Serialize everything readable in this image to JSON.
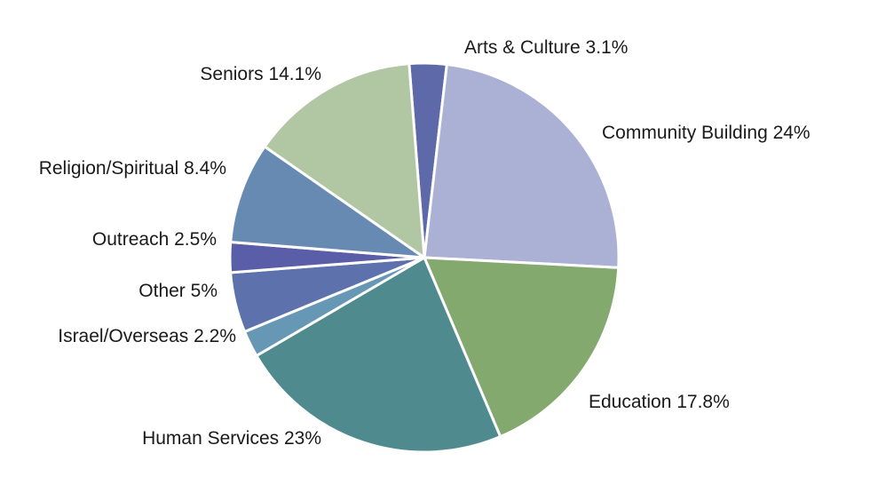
{
  "chart_data": {
    "type": "pie",
    "title": "",
    "slices": [
      {
        "label": "Arts & Culture 3.1%",
        "name": "Arts & Culture",
        "value": 3.1,
        "color": "#5d69a8"
      },
      {
        "label": "Community Building 24%",
        "name": "Community Building",
        "value": 24,
        "color": "#abb1d4"
      },
      {
        "label": "Education 17.8%",
        "name": "Education",
        "value": 17.8,
        "color": "#84a96f"
      },
      {
        "label": "Human Services 23%",
        "name": "Human Services",
        "value": 23,
        "color": "#4f8b8e"
      },
      {
        "label": "Israel/Overseas 2.2%",
        "name": "Israel/Overseas",
        "value": 2.2,
        "color": "#6697b5"
      },
      {
        "label": "Other 5%",
        "name": "Other",
        "value": 5,
        "color": "#5d71ad"
      },
      {
        "label": "Outreach 2.5%",
        "name": "Outreach",
        "value": 2.5,
        "color": "#5a5ea8"
      },
      {
        "label": "Religion/Spiritual 8.4%",
        "name": "Religion/Spiritual",
        "value": 8.4,
        "color": "#668ab2"
      },
      {
        "label": "Seniors 14.1%",
        "name": "Seniors",
        "value": 14.1,
        "color": "#b1c6a3"
      }
    ]
  }
}
